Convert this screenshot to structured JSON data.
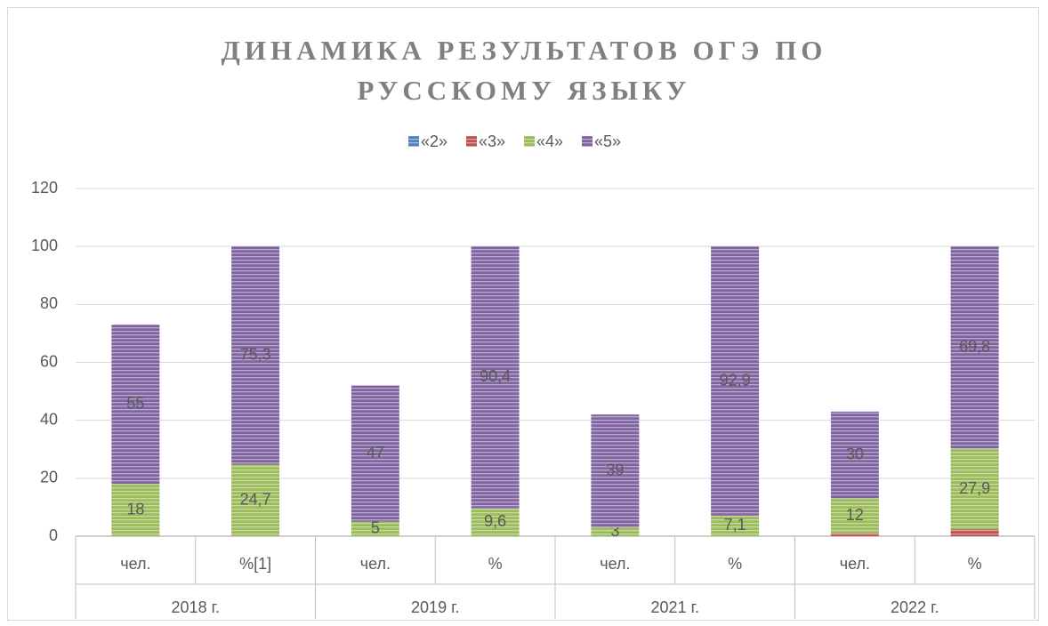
{
  "chart_data": {
    "type": "stacked_bar",
    "title": "ДИНАМИКА РЕЗУЛЬТАТОВ ОГЭ ПО РУССКОМУ ЯЗЫКУ",
    "categories": [
      "чел.",
      "%[1]",
      "чел.",
      "%",
      "чел.",
      "%",
      "чел.",
      "%"
    ],
    "groups": [
      "2018 г.",
      "2019 г.",
      "2021 г.",
      "2022 г."
    ],
    "series": [
      {
        "name": "«2»",
        "color": "#4f81bd",
        "values": [
          0,
          0,
          0,
          0,
          0,
          0,
          0,
          0
        ]
      },
      {
        "name": "«3»",
        "color": "#c0504d",
        "values": [
          0,
          0,
          0,
          0,
          0,
          0,
          1,
          2.3
        ]
      },
      {
        "name": "«4»",
        "color": "#9bbb59",
        "values": [
          18,
          24.7,
          5,
          9.6,
          3,
          7.1,
          12,
          27.9
        ],
        "value_labels": [
          "18",
          "24,7",
          "5",
          "9,6",
          "3",
          "7,1",
          "12",
          "27,9"
        ]
      },
      {
        "name": "«5»",
        "color": "#8064a2",
        "values": [
          55,
          75.3,
          47,
          90.4,
          39,
          92.9,
          30,
          69.8
        ],
        "value_labels": [
          "55",
          "75,3",
          "47",
          "90,4",
          "39",
          "92,9",
          "30",
          "69,8"
        ]
      }
    ],
    "ylim": [
      0,
      120
    ],
    "yticks": [
      0,
      20,
      40,
      60,
      80,
      100,
      120
    ],
    "grid": true,
    "legend": "top"
  }
}
